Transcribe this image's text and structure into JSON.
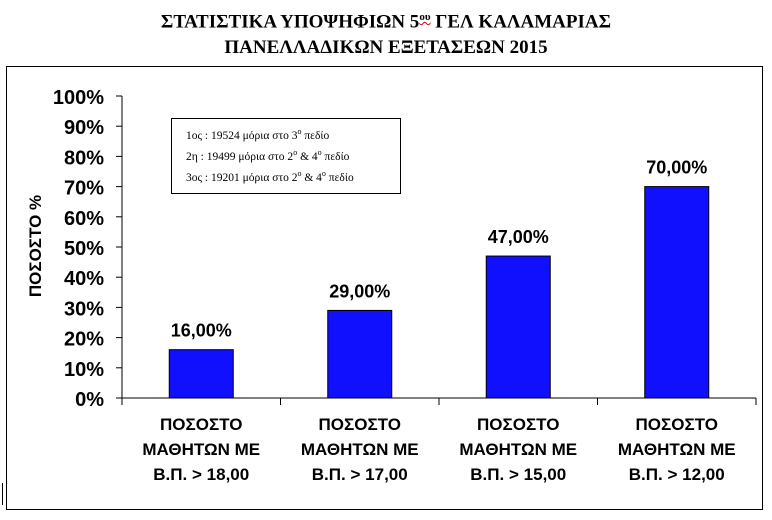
{
  "title": {
    "line1_pre": "ΣΤΑΤΙΣΤΙΚΑ ΥΠΟΨΗΦΙΩΝ 5",
    "line1_sup": "ου",
    "line1_post": " ΓΕΛ ΚΑΛΑΜΑΡΙΑΣ",
    "line2": "ΠΑΝΕΛΛΑΔΙΚΩΝ ΕΞΕΤΑΣΕΩΝ 2015"
  },
  "legend": [
    {
      "pre": "1ος : 19524 μόρια στο 3",
      "sup1": "ο",
      "mid": " πεδίο",
      "sup2": "",
      "post": ""
    },
    {
      "pre": "2η  :  19499 μόρια στο 2",
      "sup1": "ο",
      "mid": " & 4",
      "sup2": "ο",
      "post": " πεδίο"
    },
    {
      "pre": "3ος :  19201 μόρια στο 2",
      "sup1": "ο",
      "mid": " & 4",
      "sup2": "ο",
      "post": " πεδίο"
    }
  ],
  "colors": {
    "bar": "#1010ff",
    "axis": "#000000",
    "background": "#ffffff"
  },
  "chart_data": {
    "type": "bar",
    "title": "ΣΤΑΤΙΣΤΙΚΑ ΥΠΟΨΗΦΙΩΝ 5ου ΓΕΛ ΚΑΛΑΜΑΡΙΑΣ ΠΑΝΕΛΛΑΔΙΚΩΝ ΕΞΕΤΑΣΕΩΝ 2015",
    "ylabel": "ΠΟΣΟΣΤΟ %",
    "xlabel": "",
    "ylim": [
      0,
      100
    ],
    "yticks": [
      "0%",
      "10%",
      "20%",
      "30%",
      "40%",
      "50%",
      "60%",
      "70%",
      "80%",
      "90%",
      "100%"
    ],
    "grid": false,
    "categories": [
      [
        "ΠΟΣΟΣΤΟ",
        "ΜΑΘΗΤΩΝ ΜΕ",
        "Β.Π. > 18,00"
      ],
      [
        "ΠΟΣΟΣΤΟ",
        "ΜΑΘΗΤΩΝ ΜΕ",
        "Β.Π. > 17,00"
      ],
      [
        "ΠΟΣΟΣΤΟ",
        "ΜΑΘΗΤΩΝ ΜΕ",
        "Β.Π. > 15,00"
      ],
      [
        "ΠΟΣΟΣΤΟ",
        "ΜΑΘΗΤΩΝ ΜΕ",
        "Β.Π. > 12,00"
      ]
    ],
    "values": [
      16,
      29,
      47,
      70
    ],
    "data_labels": [
      "16,00%",
      "29,00%",
      "47,00%",
      "70,00%"
    ]
  }
}
